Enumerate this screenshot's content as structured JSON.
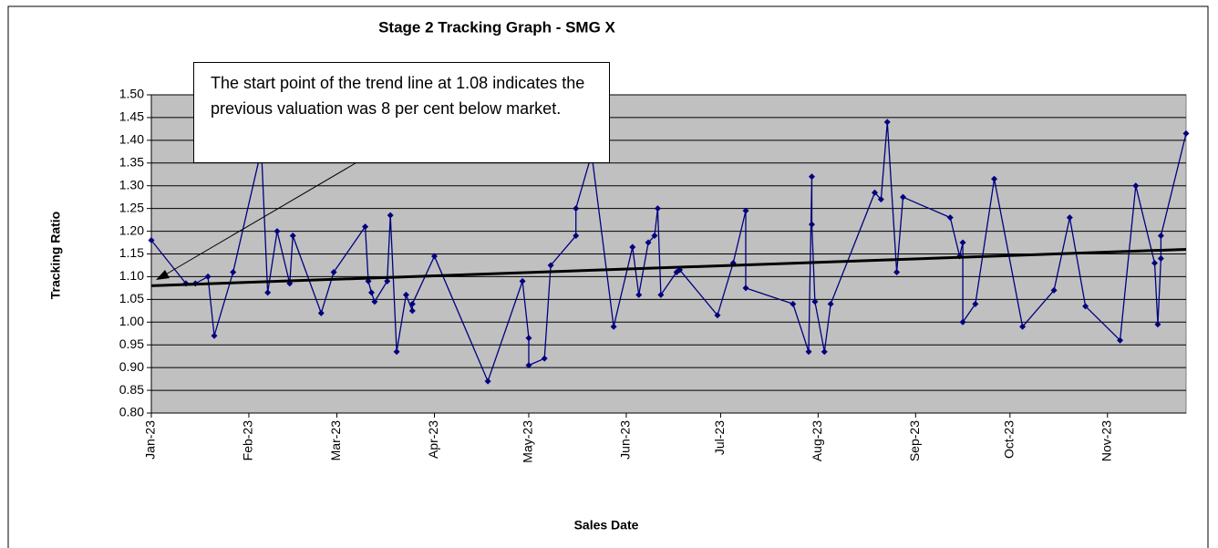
{
  "chart_data": {
    "type": "line",
    "title": "Stage 2 Tracking Graph - SMG X",
    "x_label": "Sales Date",
    "y_label": "Tracking Ratio",
    "annotation": "The start point of the trend line at 1.08 indicates the previous valuation was 8 per cent below market.",
    "xlim": [
      "2023-01-01",
      "2023-11-26"
    ],
    "xticks": [
      {
        "value": "2023-01-01",
        "label": "Jan-23"
      },
      {
        "value": "2023-02-01",
        "label": "Feb-23"
      },
      {
        "value": "2023-03-01",
        "label": "Mar-23"
      },
      {
        "value": "2023-04-01",
        "label": "Apr-23"
      },
      {
        "value": "2023-05-01",
        "label": "May-23"
      },
      {
        "value": "2023-06-01",
        "label": "Jun-23"
      },
      {
        "value": "2023-07-01",
        "label": "Jul-23"
      },
      {
        "value": "2023-08-01",
        "label": "Aug-23"
      },
      {
        "value": "2023-09-01",
        "label": "Sep-23"
      },
      {
        "value": "2023-10-01",
        "label": "Oct-23"
      },
      {
        "value": "2023-11-01",
        "label": "Nov-23"
      }
    ],
    "ylim": [
      0.8,
      1.5
    ],
    "yticks": [
      {
        "value": 0.8,
        "label": "0.80"
      },
      {
        "value": 0.85,
        "label": "0.85"
      },
      {
        "value": 0.9,
        "label": "0.90"
      },
      {
        "value": 0.95,
        "label": "0.95"
      },
      {
        "value": 1.0,
        "label": "1.00"
      },
      {
        "value": 1.05,
        "label": "1.05"
      },
      {
        "value": 1.1,
        "label": "1.10"
      },
      {
        "value": 1.15,
        "label": "1.15"
      },
      {
        "value": 1.2,
        "label": "1.20"
      },
      {
        "value": 1.25,
        "label": "1.25"
      },
      {
        "value": 1.3,
        "label": "1.30"
      },
      {
        "value": 1.35,
        "label": "1.35"
      },
      {
        "value": 1.4,
        "label": "1.40"
      },
      {
        "value": 1.45,
        "label": "1.45"
      },
      {
        "value": 1.5,
        "label": "1.50"
      }
    ],
    "grid": true,
    "x": [
      "2023-01-01",
      "2023-01-12",
      "2023-01-15",
      "2023-01-19",
      "2023-01-21",
      "2023-01-27",
      "2023-02-05",
      "2023-02-07",
      "2023-02-10",
      "2023-02-14",
      "2023-02-15",
      "2023-02-24",
      "2023-02-28",
      "2023-03-10",
      "2023-03-11",
      "2023-03-12",
      "2023-03-13",
      "2023-03-17",
      "2023-03-18",
      "2023-03-20",
      "2023-03-23",
      "2023-03-25",
      "2023-03-25",
      "2023-04-01",
      "2023-04-18",
      "2023-04-29",
      "2023-05-01",
      "2023-05-01",
      "2023-05-06",
      "2023-05-08",
      "2023-05-16",
      "2023-05-16",
      "2023-05-21",
      "2023-05-28",
      "2023-06-03",
      "2023-06-05",
      "2023-06-08",
      "2023-06-10",
      "2023-06-11",
      "2023-06-12",
      "2023-06-17",
      "2023-06-18",
      "2023-06-30",
      "2023-07-05",
      "2023-07-09",
      "2023-07-09",
      "2023-07-24",
      "2023-07-29",
      "2023-07-30",
      "2023-07-30",
      "2023-07-31",
      "2023-08-03",
      "2023-08-05",
      "2023-08-19",
      "2023-08-21",
      "2023-08-23",
      "2023-08-26",
      "2023-08-28",
      "2023-09-12",
      "2023-09-15",
      "2023-09-16",
      "2023-09-16",
      "2023-09-20",
      "2023-09-26",
      "2023-10-05",
      "2023-10-15",
      "2023-10-20",
      "2023-10-25",
      "2023-11-05",
      "2023-11-10",
      "2023-11-16",
      "2023-11-17",
      "2023-11-18",
      "2023-11-18",
      "2023-11-26"
    ],
    "series": [
      {
        "name": "Tracking Ratio",
        "color": "#000080",
        "values": [
          1.18,
          1.085,
          1.085,
          1.1,
          0.97,
          1.11,
          1.38,
          1.065,
          1.2,
          1.085,
          1.19,
          1.02,
          1.11,
          1.21,
          1.09,
          1.065,
          1.045,
          1.09,
          1.235,
          0.935,
          1.06,
          1.025,
          1.04,
          1.145,
          0.87,
          1.09,
          0.965,
          0.905,
          0.92,
          1.125,
          1.19,
          1.25,
          1.37,
          0.99,
          1.165,
          1.06,
          1.175,
          1.19,
          1.25,
          1.06,
          1.11,
          1.115,
          1.015,
          1.13,
          1.245,
          1.075,
          1.04,
          0.935,
          1.32,
          1.215,
          1.045,
          0.935,
          1.04,
          1.285,
          1.27,
          1.44,
          1.11,
          1.275,
          1.23,
          1.145,
          1.175,
          1.0,
          1.04,
          1.315,
          0.99,
          1.07,
          1.23,
          1.035,
          0.96,
          1.3,
          1.13,
          0.995,
          1.14,
          1.19,
          1.415
        ]
      }
    ],
    "trendline": {
      "color": "#000000",
      "x": [
        "2023-01-01",
        "2023-11-26"
      ],
      "values": [
        1.08,
        1.16
      ]
    }
  }
}
